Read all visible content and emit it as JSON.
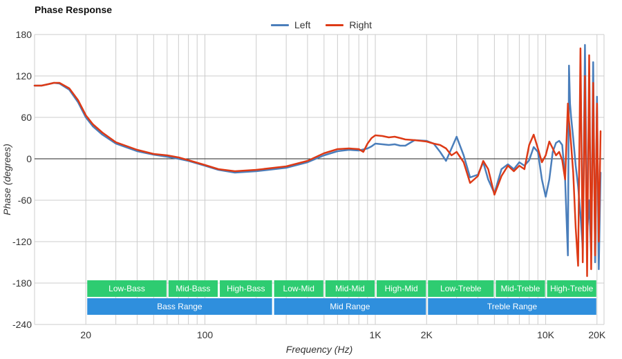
{
  "chart_data": {
    "type": "line",
    "title": "Phase Response",
    "xlabel": "Frequency (Hz)",
    "ylabel": "Phase (degrees)",
    "xscale": "log",
    "xlim": [
      10,
      22000
    ],
    "ylim": [
      -240,
      180
    ],
    "grid": true,
    "legend_position": "top-center",
    "y_ticks": [
      180,
      120,
      60,
      0,
      -60,
      -120,
      -180,
      -240
    ],
    "x_ticks": [
      {
        "value": 20,
        "label": "20"
      },
      {
        "value": 100,
        "label": "100"
      },
      {
        "value": 1000,
        "label": "1K"
      },
      {
        "value": 2000,
        "label": "2K"
      },
      {
        "value": 10000,
        "label": "10K"
      },
      {
        "value": 20000,
        "label": "20K"
      }
    ],
    "series": [
      {
        "name": "Left",
        "color": "#4a7ebb",
        "x": [
          10,
          11,
          12,
          13,
          14,
          16,
          18,
          20,
          22,
          25,
          30,
          40,
          50,
          60,
          70,
          80,
          100,
          120,
          150,
          200,
          300,
          400,
          500,
          600,
          700,
          800,
          900,
          950,
          1000,
          1100,
          1200,
          1300,
          1400,
          1500,
          1700,
          2000,
          2200,
          2400,
          2600,
          2800,
          3000,
          3300,
          3600,
          4000,
          4300,
          4600,
          5000,
          5500,
          6000,
          6500,
          7000,
          7500,
          8000,
          8500,
          9000,
          9500,
          10000,
          10500,
          11000,
          11500,
          12000,
          12500,
          13000,
          13500,
          13700,
          13900,
          14100,
          14500,
          15000,
          15500,
          16000,
          16500,
          17000,
          17500,
          18000,
          18500,
          19000,
          19500,
          20000,
          20500,
          21000
        ],
        "y": [
          106,
          106,
          108,
          110,
          109,
          100,
          82,
          60,
          47,
          35,
          22,
          11,
          6,
          3,
          0,
          -3,
          -10,
          -16,
          -20,
          -18,
          -13,
          -5,
          5,
          11,
          13,
          12,
          15,
          18,
          22,
          21,
          20,
          21,
          19,
          19,
          27,
          26,
          22,
          10,
          -3,
          15,
          32,
          5,
          -27,
          -23,
          -5,
          -30,
          -50,
          -15,
          -8,
          -15,
          -5,
          -10,
          -2,
          17,
          10,
          -30,
          -55,
          -30,
          10,
          23,
          26,
          20,
          -30,
          -140,
          135,
          80,
          60,
          30,
          -10,
          -40,
          -80,
          -130,
          165,
          -110,
          -60,
          -140,
          140,
          -150,
          90,
          -160,
          -20
        ]
      },
      {
        "name": "Right",
        "color": "#dd3a16",
        "x": [
          10,
          11,
          12,
          13,
          14,
          16,
          18,
          20,
          22,
          25,
          30,
          40,
          50,
          60,
          70,
          80,
          100,
          120,
          150,
          200,
          300,
          400,
          500,
          600,
          700,
          800,
          850,
          900,
          950,
          1000,
          1100,
          1200,
          1300,
          1400,
          1500,
          1700,
          2000,
          2200,
          2400,
          2600,
          2800,
          3000,
          3300,
          3600,
          4000,
          4300,
          4600,
          5000,
          5500,
          6000,
          6500,
          7000,
          7500,
          8000,
          8500,
          9000,
          9500,
          10000,
          10500,
          11000,
          11500,
          12000,
          12500,
          13000,
          13500,
          13700,
          13900,
          14100,
          14500,
          15000,
          15500,
          16000,
          16500,
          17000,
          17500,
          18000,
          18500,
          19000,
          19500,
          20000,
          20500,
          21000
        ],
        "y": [
          106,
          106,
          108,
          110,
          110,
          102,
          85,
          63,
          50,
          38,
          24,
          13,
          7,
          5,
          2,
          -2,
          -9,
          -15,
          -18,
          -16,
          -11,
          -3,
          8,
          14,
          15,
          14,
          10,
          22,
          30,
          34,
          33,
          31,
          32,
          30,
          28,
          27,
          25,
          22,
          20,
          15,
          5,
          10,
          -5,
          -35,
          -25,
          -3,
          -15,
          -52,
          -25,
          -10,
          -18,
          -10,
          -15,
          20,
          35,
          15,
          -5,
          5,
          25,
          15,
          5,
          10,
          -2,
          -30,
          80,
          55,
          40,
          20,
          -20,
          -100,
          -155,
          160,
          -150,
          120,
          -170,
          150,
          -160,
          110,
          -140,
          80,
          -120,
          40
        ]
      }
    ],
    "bands_upper": [
      {
        "label": "Low-Bass",
        "from": 20,
        "to": 60
      },
      {
        "label": "Mid-Bass",
        "from": 60,
        "to": 120
      },
      {
        "label": "High-Bass",
        "from": 120,
        "to": 250
      },
      {
        "label": "Low-Mid",
        "from": 250,
        "to": 500
      },
      {
        "label": "Mid-Mid",
        "from": 500,
        "to": 1000
      },
      {
        "label": "High-Mid",
        "from": 1000,
        "to": 2000
      },
      {
        "label": "Low-Treble",
        "from": 2000,
        "to": 5000
      },
      {
        "label": "Mid-Treble",
        "from": 5000,
        "to": 10000
      },
      {
        "label": "High-Treble",
        "from": 10000,
        "to": 20000
      }
    ],
    "bands_lower": [
      {
        "label": "Bass Range",
        "from": 20,
        "to": 250
      },
      {
        "label": "Mid Range",
        "from": 250,
        "to": 2000
      },
      {
        "label": "Treble Range",
        "from": 2000,
        "to": 20000
      }
    ],
    "colors": {
      "band_upper": "#2ecc71",
      "band_lower": "#2f8fdd",
      "grid": "#cccccc",
      "zero_line": "#222222"
    }
  }
}
